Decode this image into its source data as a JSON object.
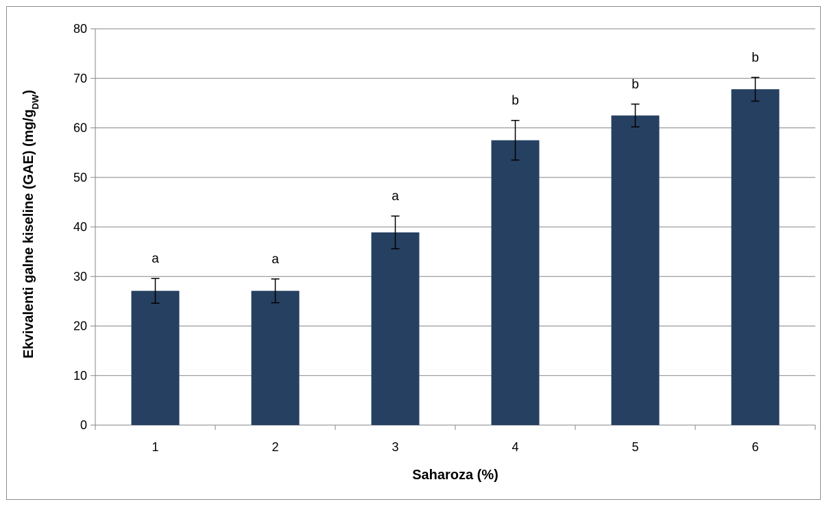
{
  "chart_data": {
    "type": "bar",
    "categories": [
      "1",
      "2",
      "3",
      "4",
      "5",
      "6"
    ],
    "values": [
      27.1,
      27.1,
      38.9,
      57.5,
      62.5,
      67.8
    ],
    "error_bars": [
      2.5,
      2.4,
      3.3,
      4.0,
      2.3,
      2.4
    ],
    "significance_letters": [
      "a",
      "a",
      "a",
      "b",
      "b",
      "b"
    ],
    "xlabel": "Saharoza (%)",
    "ylabel": {
      "main": "Ekvivalenti galne kiseline (GAE) (mg/g",
      "subscript": "DW",
      "suffix": ")"
    },
    "ylim": [
      0,
      80
    ],
    "yticks": [
      0,
      10,
      20,
      30,
      40,
      50,
      60,
      70,
      80
    ],
    "grid": true,
    "legend": "none",
    "colors": {
      "bar": "#264061",
      "grid": "#868686",
      "axis": "#868686",
      "error_bar": "#000000"
    }
  }
}
